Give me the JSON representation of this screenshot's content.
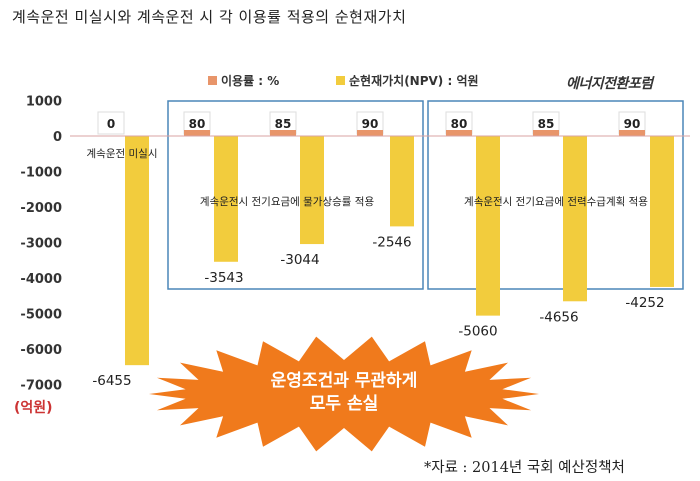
{
  "title": "계속운전 미실시와 계속운전 시 각 이용률 적용의 순현재가치",
  "source": "*자료 : 2014년 국회 예산정책처",
  "unit_label": "(억원)",
  "logo_text": "에너지전환포럼",
  "banner_text": [
    "운영조건과 무관하게",
    "모두 손실"
  ],
  "chart_data": {
    "type": "bar",
    "legend": [
      {
        "name": "이용률 : %",
        "color": "#e8956a"
      },
      {
        "name": "순현재가치(NPV) : 억원",
        "color": "#f2cc3d"
      }
    ],
    "legend_position": "top",
    "ylim": [
      -7000,
      1000
    ],
    "yticks": [
      1000,
      0,
      -1000,
      -2000,
      -3000,
      -4000,
      -5000,
      -6000,
      -7000
    ],
    "groups": [
      {
        "label": "계속운전 미실시",
        "utilization": [
          0
        ],
        "npv": [
          -6455
        ],
        "labels": [
          "-6455"
        ]
      },
      {
        "label": "계속운전시 전기요금에 물가상승률 적용",
        "utilization": [
          80,
          85,
          90
        ],
        "npv": [
          -3543,
          -3044,
          -2546
        ],
        "labels": [
          "-3543",
          "-3044",
          "-2546"
        ]
      },
      {
        "label": "계속운전시 전기요금에 전력수급계획 적용",
        "utilization": [
          80,
          85,
          90
        ],
        "npv": [
          -5060,
          -4656,
          -4252
        ],
        "labels": [
          "-5060",
          "-4656",
          "-4252"
        ]
      }
    ]
  },
  "colors": {
    "npv_bar": "#f2cc3d",
    "util_bar": "#e8956a",
    "group_box": "#4a86b8",
    "banner": "#f07a1c",
    "banner_text": "#ffffff",
    "axis_text": "#333333"
  }
}
